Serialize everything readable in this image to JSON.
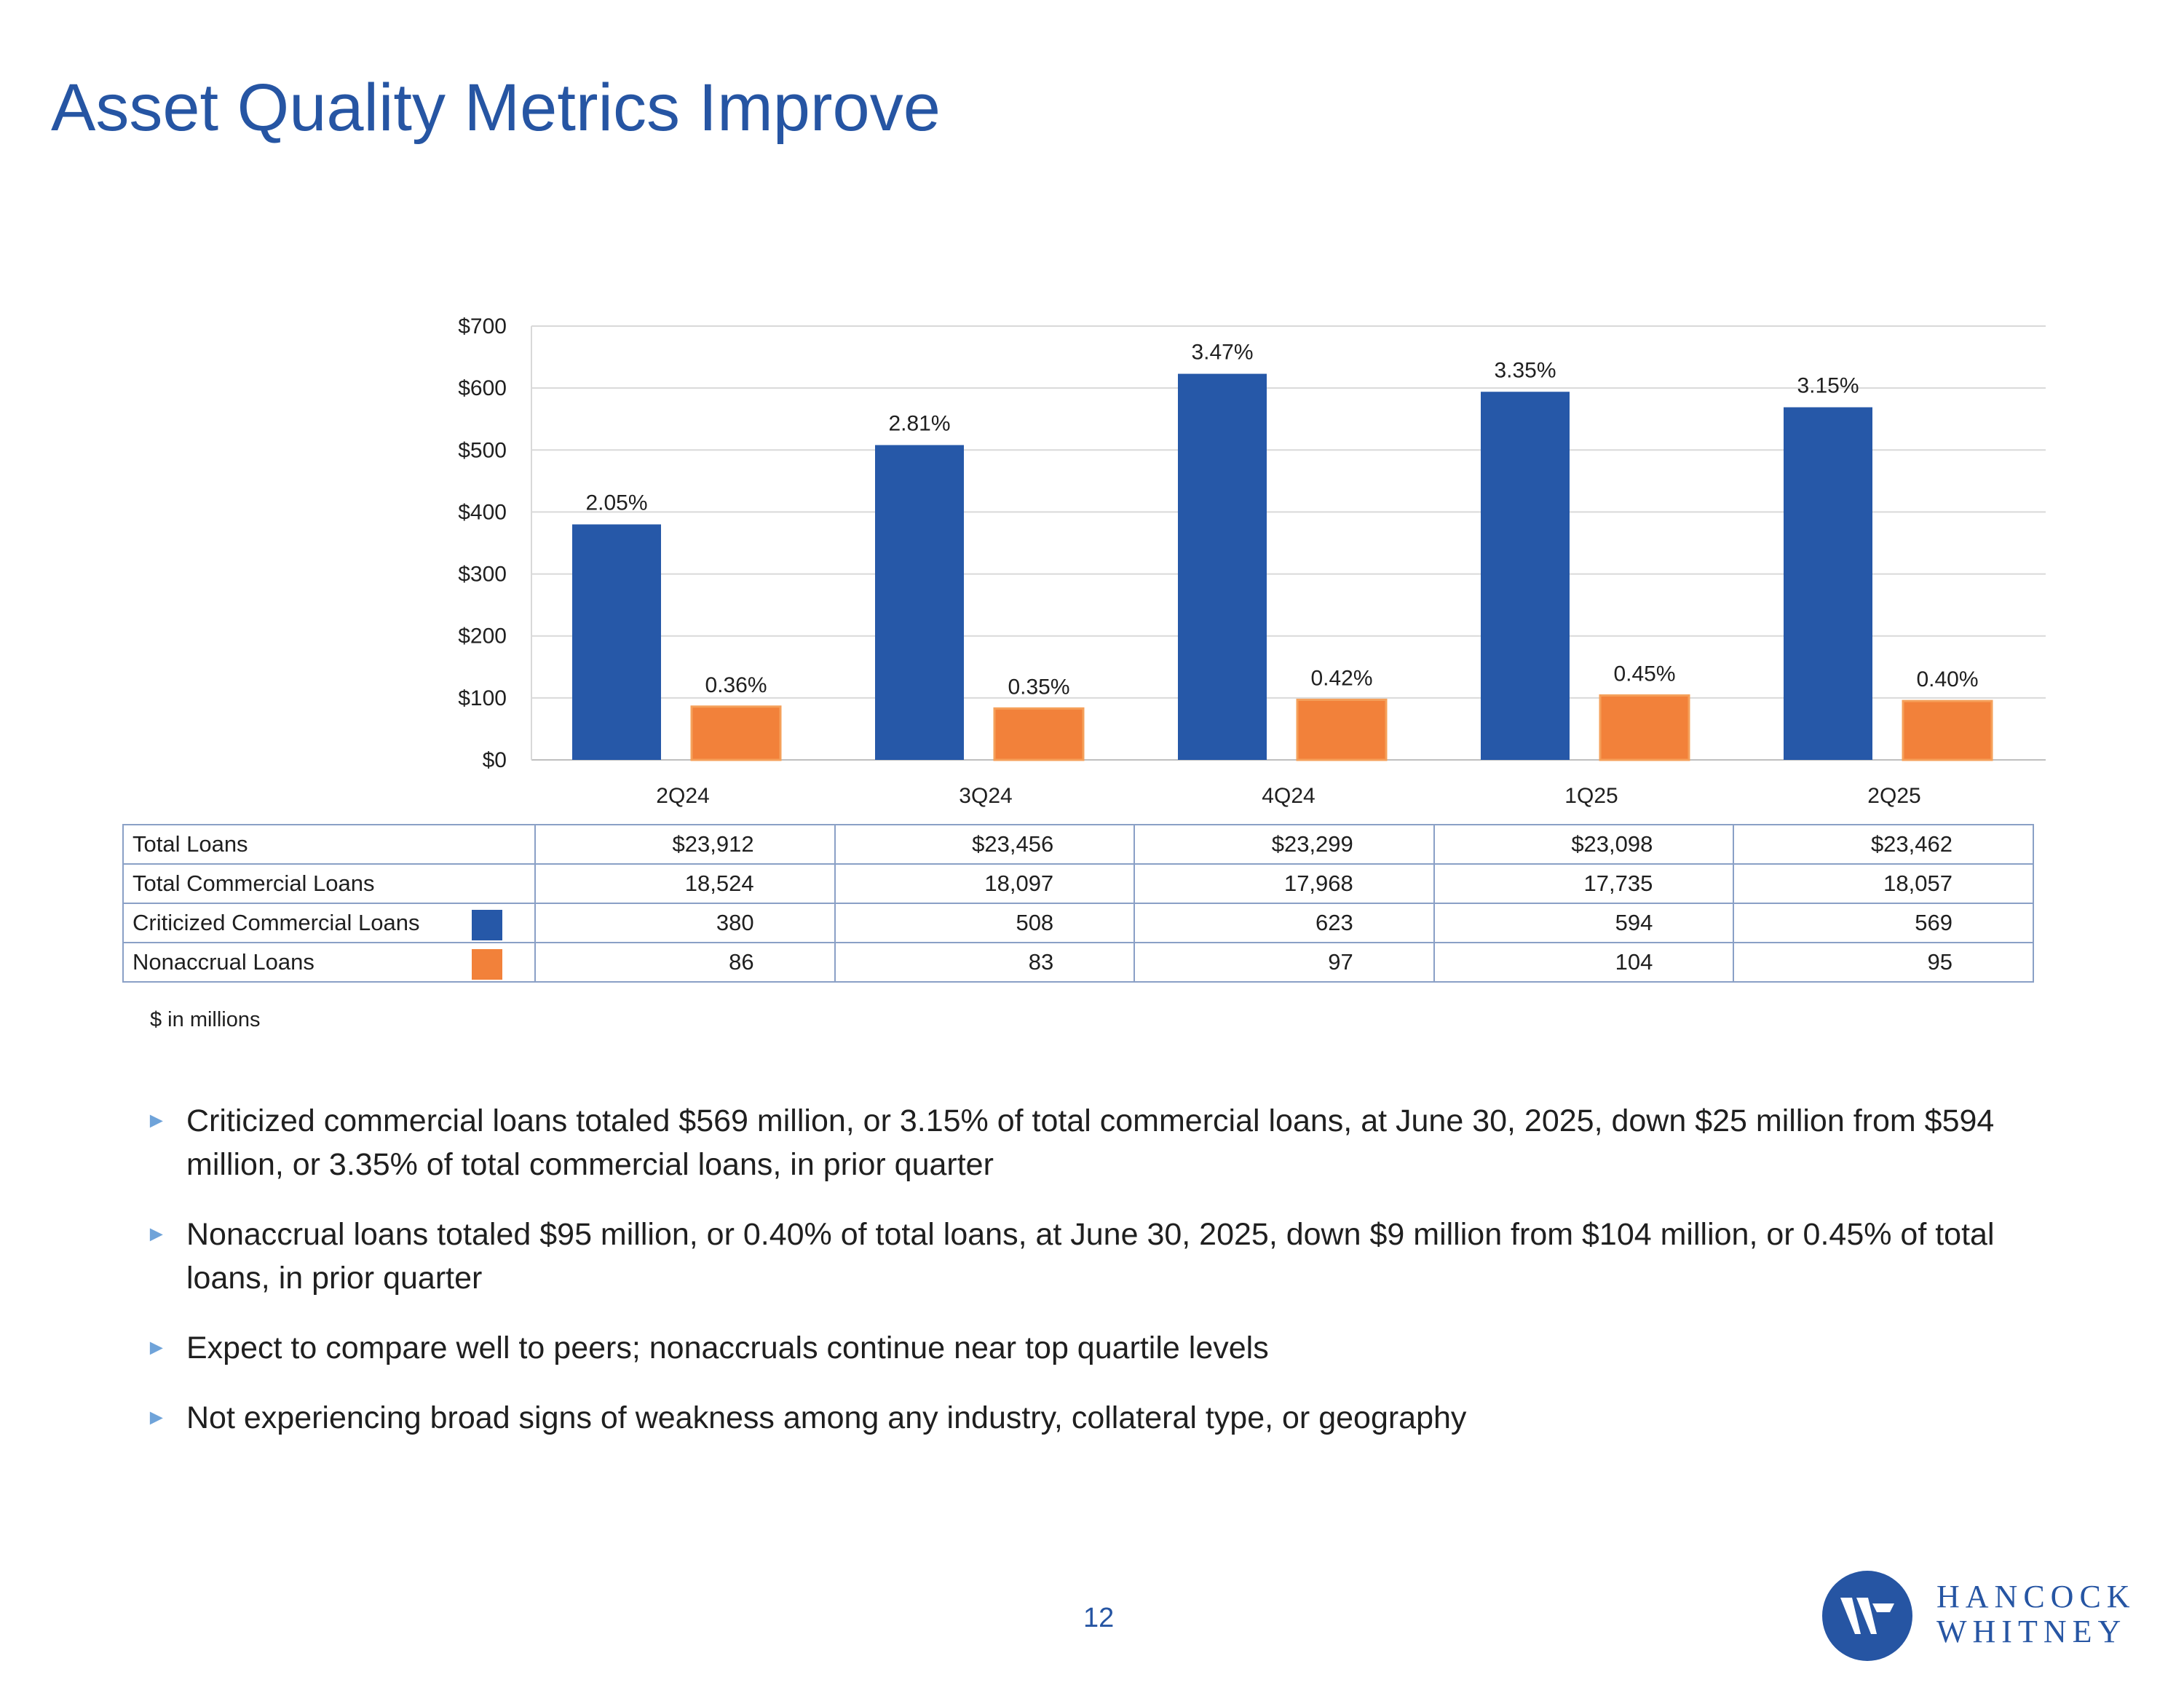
{
  "title": "Asset Quality Metrics Improve",
  "colors": {
    "title": "#2655a3",
    "criticized": "#2658a8",
    "nonaccrual": "#f2813a",
    "grid": "#d9d9d9"
  },
  "chart_data": {
    "type": "bar",
    "categories": [
      "2Q24",
      "3Q24",
      "4Q24",
      "1Q25",
      "2Q25"
    ],
    "ylim": [
      0,
      700
    ],
    "yticks": [
      "$700",
      "$600",
      "$500",
      "$400",
      "$300",
      "$200",
      "$100",
      "$0"
    ],
    "grid": true,
    "series": [
      {
        "name": "Criticized Commercial Loans",
        "color": "#2658a8",
        "values": [
          380,
          508,
          623,
          594,
          569
        ],
        "labels": [
          "2.05%",
          "2.81%",
          "3.47%",
          "3.35%",
          "3.15%"
        ]
      },
      {
        "name": "Nonaccrual Loans",
        "color": "#f2813a",
        "values": [
          86,
          83,
          97,
          104,
          95
        ],
        "labels": [
          "0.36%",
          "0.35%",
          "0.42%",
          "0.45%",
          "0.40%"
        ]
      }
    ]
  },
  "table": {
    "rows": [
      {
        "label": "Total Loans",
        "values": [
          "$23,912",
          "$23,456",
          "$23,299",
          "$23,098",
          "$23,462"
        ]
      },
      {
        "label": "Total Commercial Loans",
        "values": [
          "18,524",
          "18,097",
          "17,968",
          "17,735",
          "18,057"
        ]
      },
      {
        "label": "Criticized Commercial Loans",
        "values": [
          "380",
          "508",
          "623",
          "594",
          "569"
        ]
      },
      {
        "label": "Nonaccrual Loans",
        "values": [
          "86",
          "83",
          "97",
          "104",
          "95"
        ]
      }
    ],
    "note": "$ in millions"
  },
  "bullets": [
    "Criticized commercial loans totaled $569 million, or 3.15% of total commercial loans, at June 30, 2025, down $25 million from $594 million, or 3.35% of total commercial loans, in prior quarter",
    "Nonaccrual loans totaled $95 million, or 0.40% of total loans, at June 30, 2025, down $9 million from $104 million, or 0.45% of total loans, in prior quarter",
    "Expect to compare well to peers; nonaccruals continue near top quartile levels",
    "Not experiencing broad signs of weakness among any industry, collateral type, or geography"
  ],
  "page_number": "12",
  "brand": {
    "line1": "HANCOCK",
    "line2": "WHITNEY",
    "logo_icon": "hancock-whitney-logo-icon"
  }
}
